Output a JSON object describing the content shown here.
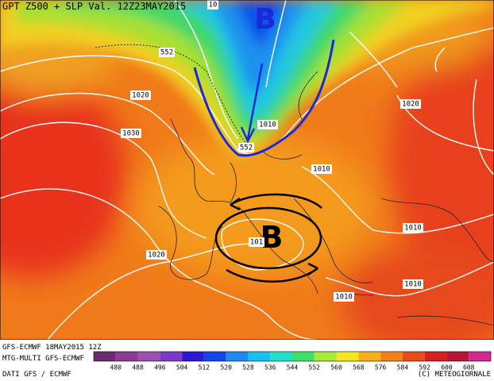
{
  "header": {
    "title": "GPT Z500 + SLP Val. 12Z23MAY2015"
  },
  "pressure_centers": [
    "B",
    "B"
  ],
  "contour_labels": [
    10,
    552,
    1020,
    1030,
    1010,
    552,
    1010,
    1020,
    101,
    1020,
    1010,
    1010,
    1010
  ],
  "footer": {
    "run": "GFS-ECMWF 18MAY2015 12Z",
    "model": "MTG-MULTI GFS-ECMWF",
    "source": "DATI GFS / ECMWF",
    "copyright": "(C) METEOGIORNALE"
  },
  "colorbar": {
    "labels": [
      480,
      488,
      496,
      504,
      512,
      520,
      528,
      536,
      544,
      552,
      560,
      568,
      576,
      584,
      592,
      600,
      608
    ],
    "colors": [
      "#6e2a6e",
      "#8a3a92",
      "#9b4fb0",
      "#7a3ac8",
      "#2a1ad8",
      "#1446f0",
      "#1e88f5",
      "#18c0f0",
      "#20e0c8",
      "#3ee06a",
      "#a8e838",
      "#f2e81e",
      "#f6b018",
      "#f28018",
      "#ec4a18",
      "#d81e1e",
      "#b81434",
      "#d42890"
    ]
  }
}
